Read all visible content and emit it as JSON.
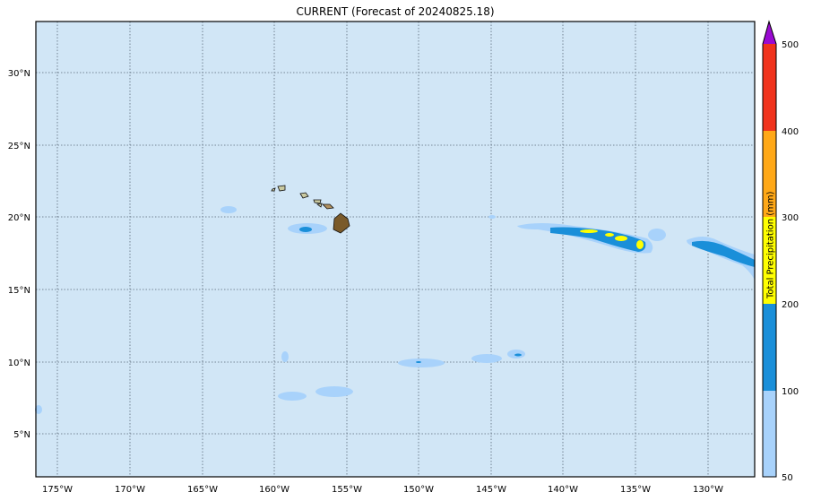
{
  "title": "CURRENT (Forecast of 20240825.18)",
  "map": {
    "ocean_color": "#d1e6f6",
    "lon_ticks": [
      "175°W",
      "170°W",
      "165°W",
      "160°W",
      "155°W",
      "150°W",
      "145°W",
      "140°W",
      "135°W",
      "130°W"
    ],
    "lat_ticks": [
      "30°N",
      "25°N",
      "20°N",
      "15°N",
      "10°N",
      "5°N"
    ]
  },
  "colorbar": {
    "label": "Total Precipitation (mm)",
    "ticks": [
      "500",
      "400",
      "300",
      "200",
      "100",
      "50"
    ],
    "levels": [
      {
        "range": "50-100",
        "color": "#a8d2fb"
      },
      {
        "range": "100-200",
        "color": "#1a8fd9"
      },
      {
        "range": "200-300",
        "color": "#ffff00"
      },
      {
        "range": "300-400",
        "color": "#ffa817"
      },
      {
        "range": "400-500",
        "color": "#f0331c"
      },
      {
        "range": ">500",
        "color": "#9a0ad2"
      }
    ]
  }
}
